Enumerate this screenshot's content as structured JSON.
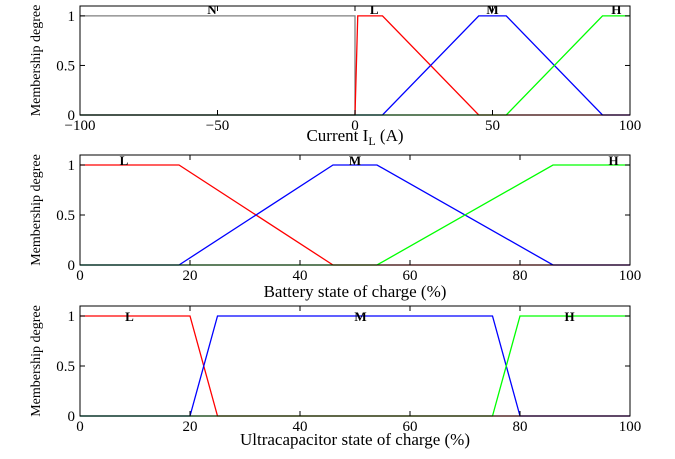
{
  "chart_data": [
    {
      "type": "line",
      "xlabel": "Current I",
      "xlabel_sub": "L",
      "xlabel_unit": " (A)",
      "ylabel": "Membership degree",
      "xlim": [
        -100,
        100
      ],
      "ylim": [
        0,
        1.1
      ],
      "xticks": [
        -100,
        -50,
        0,
        50,
        100
      ],
      "xtick_labels": [
        "−100",
        "−50",
        "0",
        "50",
        "100"
      ],
      "yticks": [
        0,
        0.5,
        1
      ],
      "ytick_labels": [
        "0",
        "0.5",
        "1"
      ],
      "series": [
        {
          "name": "N",
          "color": "#7f7f7f",
          "x": [
            -100,
            0,
            0
          ],
          "y": [
            1,
            1,
            0
          ],
          "label_x": -52
        },
        {
          "name": "L",
          "color": "#ff0000",
          "x": [
            -100,
            0,
            1,
            10,
            45,
            100
          ],
          "y": [
            0,
            0,
            1,
            1,
            0,
            0
          ],
          "label_x": 7
        },
        {
          "name": "M",
          "color": "#0000ff",
          "x": [
            -100,
            10,
            45,
            55,
            90,
            100
          ],
          "y": [
            0,
            0,
            1,
            1,
            0,
            0
          ],
          "label_x": 50
        },
        {
          "name": "H",
          "color": "#00ff00",
          "x": [
            -100,
            55,
            90,
            100
          ],
          "y": [
            0,
            0,
            1,
            1
          ],
          "label_x": 95
        }
      ]
    },
    {
      "type": "line",
      "xlabel": "Battery state of charge (%)",
      "ylabel": "Membership degree",
      "xlim": [
        0,
        100
      ],
      "ylim": [
        0,
        1.1
      ],
      "xticks": [
        0,
        20,
        40,
        60,
        80,
        100
      ],
      "xtick_labels": [
        "0",
        "20",
        "40",
        "60",
        "80",
        "100"
      ],
      "yticks": [
        0,
        0.5,
        1
      ],
      "ytick_labels": [
        "0",
        "0.5",
        "1"
      ],
      "series": [
        {
          "name": "L",
          "color": "#ff0000",
          "x": [
            0,
            18,
            46,
            100
          ],
          "y": [
            1,
            1,
            0,
            0
          ],
          "label_x": 8
        },
        {
          "name": "M",
          "color": "#0000ff",
          "x": [
            0,
            18,
            46,
            54,
            86,
            100
          ],
          "y": [
            0,
            0,
            1,
            1,
            0,
            0
          ],
          "label_x": 50
        },
        {
          "name": "H",
          "color": "#00ff00",
          "x": [
            0,
            54,
            86,
            100
          ],
          "y": [
            0,
            0,
            1,
            1
          ],
          "label_x": 97
        }
      ]
    },
    {
      "type": "line",
      "xlabel": "Ultracapacitor state of charge (%)",
      "ylabel": "Membership degree",
      "xlim": [
        0,
        100
      ],
      "ylim": [
        0,
        1.1
      ],
      "xticks": [
        0,
        20,
        40,
        60,
        80,
        100
      ],
      "xtick_labels": [
        "0",
        "20",
        "40",
        "60",
        "80",
        "100"
      ],
      "yticks": [
        0,
        0.5,
        1
      ],
      "ytick_labels": [
        "0",
        "0.5",
        "1"
      ],
      "series": [
        {
          "name": "L",
          "color": "#ff0000",
          "x": [
            0,
            20,
            25,
            100
          ],
          "y": [
            1,
            1,
            0,
            0
          ],
          "label_x": 9
        },
        {
          "name": "M",
          "color": "#0000ff",
          "x": [
            0,
            20,
            25,
            75,
            80,
            100
          ],
          "y": [
            0,
            0,
            1,
            1,
            0,
            0
          ],
          "label_x": 51
        },
        {
          "name": "H",
          "color": "#00ff00",
          "x": [
            0,
            75,
            80,
            100
          ],
          "y": [
            0,
            0,
            1,
            1
          ],
          "label_x": 89
        }
      ]
    }
  ]
}
